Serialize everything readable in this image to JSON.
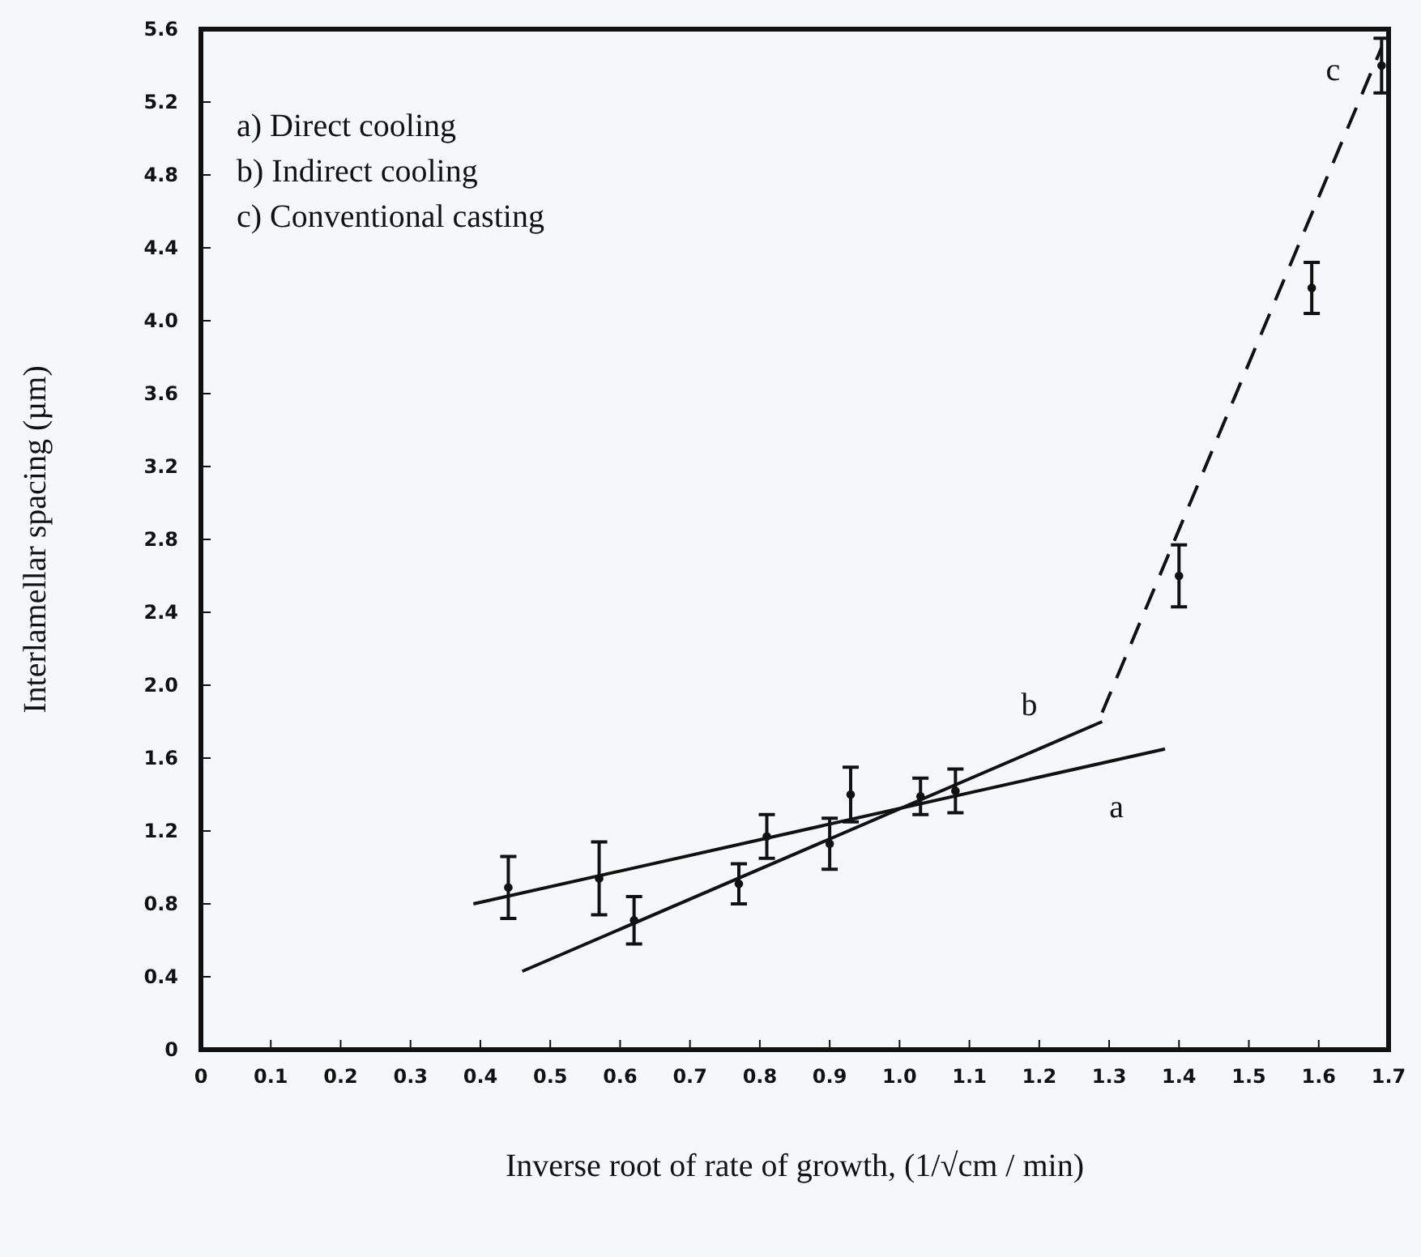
{
  "chart_data": {
    "type": "scatter",
    "xlabel": "Inverse root of rate of growth, (1/√cm / min)",
    "ylabel": "Interlamellar spacing (µm)",
    "xlim": [
      0,
      1.7
    ],
    "ylim": [
      0,
      5.6
    ],
    "xticks": [
      0,
      0.1,
      0.2,
      0.3,
      0.4,
      0.5,
      0.6,
      0.7,
      0.8,
      0.9,
      {
        "value": 1,
        "label": "1.0"
      },
      1.1,
      1.2,
      1.3,
      1.4,
      1.5,
      1.6,
      1.7
    ],
    "yticks": [
      0,
      0.4,
      0.8,
      1.2,
      1.6,
      {
        "value": 2,
        "label": "2.0"
      },
      2.4,
      2.8,
      3.2,
      3.6,
      {
        "value": 4,
        "label": "4.0"
      },
      4.4,
      4.8,
      5.2,
      5.6
    ],
    "grid": false,
    "series": [
      {
        "marker": "circle",
        "color": "#111111",
        "x": [
          0.44,
          0.57,
          0.62,
          0.77,
          0.81,
          0.9,
          0.93,
          1.03,
          1.08,
          1.4,
          1.59,
          1.69
        ],
        "values": [
          0.89,
          0.94,
          0.71,
          0.91,
          1.17,
          1.13,
          1.4,
          1.39,
          1.42,
          2.6,
          4.18,
          5.4
        ],
        "errors": [
          0.17,
          0.2,
          0.13,
          0.11,
          0.12,
          0.14,
          0.15,
          0.1,
          0.12,
          0.17,
          0.14,
          0.15
        ]
      },
      {
        "type": "line",
        "name": "a",
        "color": "#111111",
        "x": [
          0.39,
          1.38
        ],
        "values": [
          0.8,
          1.65
        ],
        "line_style": "solid"
      },
      {
        "type": "line",
        "name": "b",
        "color": "#111111",
        "x": [
          0.46,
          1.29
        ],
        "values": [
          0.43,
          1.8
        ],
        "line_style": "solid"
      },
      {
        "type": "line",
        "name": "c",
        "color": "#111111",
        "x": [
          1.29,
          1.69
        ],
        "values": [
          1.85,
          5.5
        ],
        "line_style": "dashed"
      }
    ],
    "annotations": [
      "a) Direct cooling",
      "b) Indirect cooling",
      "c) Conventional casting"
    ]
  }
}
